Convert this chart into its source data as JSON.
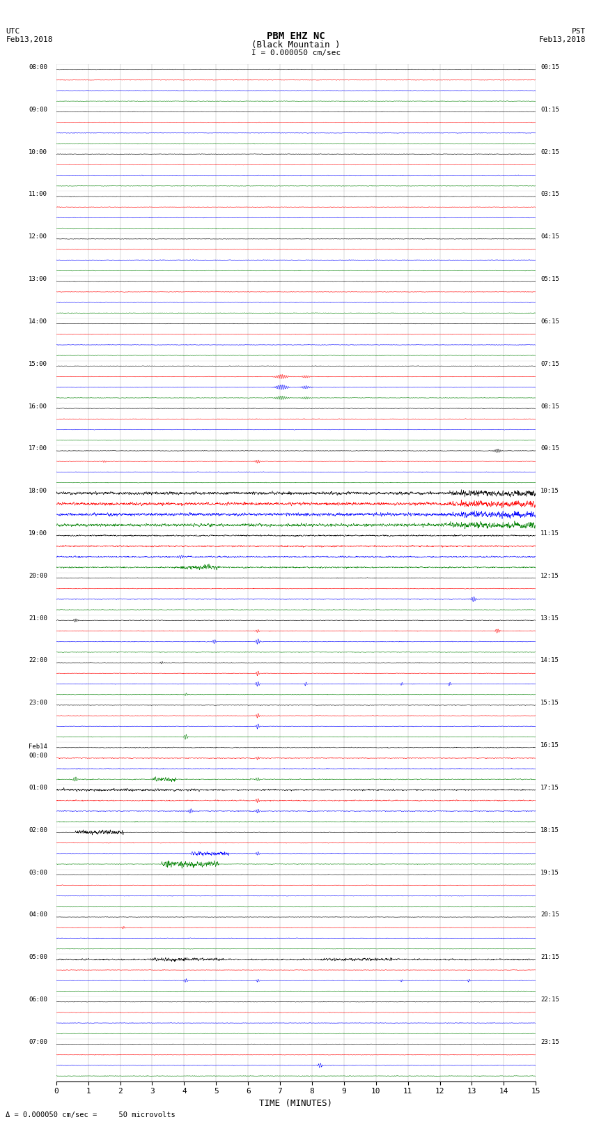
{
  "title_line1": "PBM EHZ NC",
  "title_line2": "(Black Mountain )",
  "scale_label": "I = 0.000050 cm/sec",
  "left_header": "UTC\nFeb13,2018",
  "right_header": "PST\nFeb13,2018",
  "xlabel": "TIME (MINUTES)",
  "footer_label": "Δ = 0.000050 cm/sec =     50 microvolts",
  "utc_labels": [
    "08:00",
    "09:00",
    "10:00",
    "11:00",
    "12:00",
    "13:00",
    "14:00",
    "15:00",
    "16:00",
    "17:00",
    "18:00",
    "19:00",
    "20:00",
    "21:00",
    "22:00",
    "23:00",
    "Feb14\n00:00",
    "01:00",
    "02:00",
    "03:00",
    "04:00",
    "05:00",
    "06:00",
    "07:00"
  ],
  "pst_labels": [
    "00:15",
    "01:15",
    "02:15",
    "03:15",
    "04:15",
    "05:15",
    "06:15",
    "07:15",
    "08:15",
    "09:15",
    "10:15",
    "11:15",
    "12:15",
    "13:15",
    "14:15",
    "15:15",
    "16:15",
    "17:15",
    "18:15",
    "19:15",
    "20:15",
    "21:15",
    "22:15",
    "23:15"
  ],
  "num_hours": 24,
  "traces_per_hour": 4,
  "colors": [
    "black",
    "red",
    "blue",
    "green"
  ],
  "bg_color": "white",
  "xmin": 0,
  "xmax": 15,
  "xticks": [
    0,
    1,
    2,
    3,
    4,
    5,
    6,
    7,
    8,
    9,
    10,
    11,
    12,
    13,
    14,
    15
  ]
}
